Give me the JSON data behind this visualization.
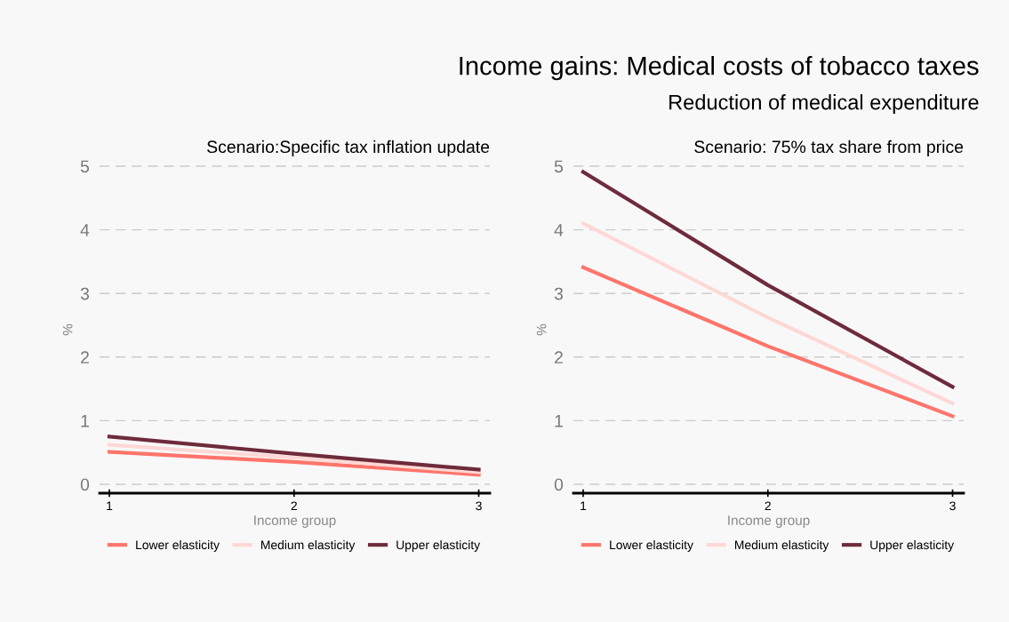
{
  "chart_data": [
    {
      "type": "line",
      "annotations": [
        "Scenario:Specific tax inflation update"
      ],
      "xlabel": "Income group",
      "ylabel": "%",
      "x": [
        1,
        2,
        3
      ],
      "xlim": [
        0.947,
        3.06
      ],
      "xticks": [
        1,
        2,
        3
      ],
      "ylim": [
        -0.14,
        5
      ],
      "yticks": [
        0,
        1,
        2,
        3,
        4,
        5
      ],
      "grid": "y",
      "legend": "bottom",
      "line_style": "solid",
      "marker": "none",
      "series": [
        {
          "name": "Lower elasticity",
          "color": "#ff756b",
          "values": [
            0.51,
            0.35,
            0.15
          ]
        },
        {
          "name": "Medium elasticity",
          "color": "#ffd8d5",
          "values": [
            0.62,
            0.42,
            0.19
          ]
        },
        {
          "name": "Upper elasticity",
          "color": "#6e2b3b",
          "values": [
            0.75,
            0.48,
            0.23
          ]
        }
      ]
    },
    {
      "type": "line",
      "title": "Income gains: Medical costs of tobacco taxes",
      "subtitle": "Reduction of medical expenditure",
      "annotations": [
        "Scenario: 75% tax share from price"
      ],
      "xlabel": "Income group",
      "ylabel": "%",
      "x": [
        1,
        2,
        3
      ],
      "xlim": [
        0.947,
        3.06
      ],
      "xticks": [
        1,
        2,
        3
      ],
      "ylim": [
        -0.14,
        5
      ],
      "yticks": [
        0,
        1,
        2,
        3,
        4,
        5
      ],
      "grid": "y",
      "legend": "bottom",
      "line_style": "solid",
      "marker": "none",
      "series": [
        {
          "name": "Lower elasticity",
          "color": "#ff756b",
          "values": [
            3.41,
            2.17,
            1.07
          ]
        },
        {
          "name": "Medium elasticity",
          "color": "#ffd8d5",
          "values": [
            4.1,
            2.62,
            1.27
          ]
        },
        {
          "name": "Upper elasticity",
          "color": "#6e2b3b",
          "values": [
            4.91,
            3.13,
            1.53
          ]
        }
      ]
    }
  ]
}
